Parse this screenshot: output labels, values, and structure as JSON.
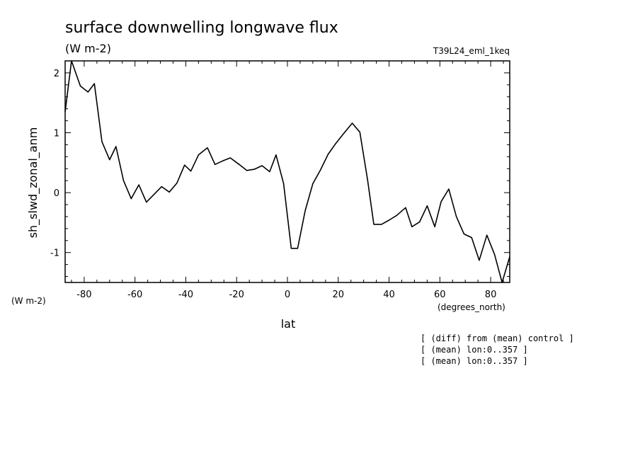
{
  "chart_data": {
    "type": "line",
    "title": "surface downwelling longwave flux",
    "title_units": "(W m-2)",
    "run_label": "T39L24_eml_1keq",
    "ylabel": "sh_slwd_zonal_anm",
    "yunits": "(W m-2)",
    "xlabel": "lat",
    "xunits": "(degrees_north)",
    "xlim": [
      -87.5,
      87.5
    ],
    "ylim": [
      -1.5,
      2.2
    ],
    "xticks": [
      -80,
      -60,
      -40,
      -20,
      0,
      20,
      40,
      60,
      80
    ],
    "xtick_labels": [
      "-80",
      "-60",
      "-40",
      "-20",
      "0",
      "20",
      "40",
      "60",
      "80"
    ],
    "yticks": [
      -1,
      0,
      1,
      2
    ],
    "ytick_labels": [
      "-1",
      "0",
      "1",
      "2"
    ],
    "grid": false,
    "color": "#000000",
    "x": [
      -87.5,
      -85.0,
      -81.5,
      -78.5,
      -76.0,
      -73.0,
      -70.0,
      -67.5,
      -64.5,
      -61.5,
      -58.5,
      -55.5,
      -52.5,
      -49.5,
      -46.5,
      -43.5,
      -40.5,
      -38.0,
      -35.0,
      -31.5,
      -28.5,
      -25.5,
      -22.5,
      -19.0,
      -16.0,
      -13.0,
      -10.0,
      -7.0,
      -4.5,
      -1.5,
      1.5,
      4.0,
      7.0,
      10.0,
      13.0,
      16.0,
      19.0,
      22.0,
      25.5,
      28.5,
      31.5,
      34.0,
      37.0,
      40.0,
      43.0,
      46.5,
      49.0,
      52.0,
      55.0,
      58.0,
      60.5,
      63.5,
      66.5,
      69.5,
      72.5,
      75.5,
      78.5,
      81.5,
      84.5,
      87.5
    ],
    "y": [
      1.35,
      2.2,
      1.78,
      1.68,
      1.82,
      0.85,
      0.55,
      0.77,
      0.2,
      -0.1,
      0.13,
      -0.16,
      -0.03,
      0.1,
      0.01,
      0.16,
      0.46,
      0.36,
      0.63,
      0.75,
      0.47,
      0.53,
      0.58,
      0.47,
      0.37,
      0.39,
      0.45,
      0.35,
      0.63,
      0.15,
      -0.93,
      -0.93,
      -0.3,
      0.15,
      0.38,
      0.64,
      0.82,
      0.98,
      1.16,
      1.01,
      0.23,
      -0.53,
      -0.53,
      -0.46,
      -0.38,
      -0.25,
      -0.57,
      -0.49,
      -0.22,
      -0.57,
      -0.15,
      0.06,
      -0.4,
      -0.69,
      -0.75,
      -1.13,
      -0.71,
      -1.03,
      -1.5,
      -1.07
    ]
  },
  "notes": [
    "[ (diff) from (mean) control ]",
    "[ (mean) lon:0..357 ]",
    "[ (mean) lon:0..357 ]"
  ]
}
